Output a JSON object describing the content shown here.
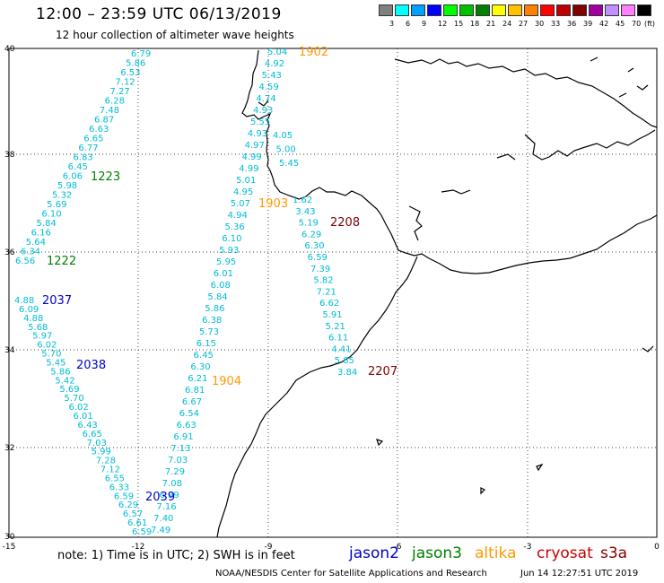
{
  "header": {
    "title": "12:00 – 23:59 UTC 06/13/2019",
    "subtitle": "12 hour collection of altimeter wave heights"
  },
  "legend": {
    "unit": "(ft)",
    "labels": [
      "3",
      "6",
      "9",
      "12",
      "15",
      "18",
      "21",
      "24",
      "27",
      "30",
      "33",
      "36",
      "39",
      "42",
      "45",
      "70"
    ],
    "colors": [
      "#808080",
      "#00ffff",
      "#00a0ff",
      "#0000ff",
      "#00ff00",
      "#00c000",
      "#008000",
      "#ffff00",
      "#ffc000",
      "#ff8000",
      "#ff0000",
      "#c00000",
      "#800000",
      "#a000a0",
      "#c090ff",
      "#ff80ff",
      "#000000"
    ]
  },
  "axes": {
    "lon_labels": [
      "-15",
      "-12",
      "-9",
      "-6",
      "-3",
      "0"
    ],
    "lat_labels": [
      "40",
      "38",
      "36",
      "34",
      "32",
      "30"
    ]
  },
  "track_labels": [
    {
      "text": "1902",
      "color": "#ff9900"
    },
    {
      "text": "1223",
      "color": "#008000"
    },
    {
      "text": "1222",
      "color": "#008000"
    },
    {
      "text": "2037",
      "color": "#0000cc"
    },
    {
      "text": "2038",
      "color": "#0000cc"
    },
    {
      "text": "1903",
      "color": "#ff9900"
    },
    {
      "text": "2208",
      "color": "#800000"
    },
    {
      "text": "1904",
      "color": "#ff9900"
    },
    {
      "text": "2207",
      "color": "#800000"
    },
    {
      "text": "2039",
      "color": "#0000cc"
    }
  ],
  "swh_values": {
    "track_west_1223": [
      "6.79",
      "5.86",
      "6.53",
      "7.12",
      "7.27",
      "6.28",
      "7.48",
      "6.87",
      "6.63",
      "6.65",
      "6.77",
      "6.83",
      "6.45",
      "6.06",
      "5.98",
      "5.32",
      "5.69",
      "6.10",
      "5.84",
      "6.16",
      "5.64",
      "6.34",
      "6.56"
    ],
    "track_2037": [
      "4.88",
      "6.09",
      "4.88",
      "5.68",
      "5.97",
      "6.02",
      "5.70",
      "5.45",
      "5.86",
      "5.42",
      "5.69",
      "5.70",
      "6.02",
      "6.01",
      "6.43",
      "6.65",
      "7.03",
      "5.99",
      "7.28",
      "7.12",
      "6.55",
      "6.33",
      "6.59",
      "6.29",
      "6.57",
      "6.61",
      "6.59"
    ],
    "track_1903": [
      "5.04",
      "4.92",
      "5.43",
      "4.59",
      "4.74",
      "4.93",
      "5.55",
      "4.93",
      "4.97",
      "4.99",
      "4.99",
      "5.01",
      "4.95",
      "5.07",
      "4.94",
      "5.36",
      "6.10",
      "5.93",
      "5.95",
      "6.01",
      "6.08",
      "5.84",
      "5.86",
      "6.38",
      "5.73",
      "6.15",
      "6.45",
      "6.30",
      "6.21",
      "6.81",
      "6.67",
      "6.54",
      "6.63",
      "6.91",
      "7.13",
      "7.03",
      "7.29",
      "7.08",
      "6.99",
      "7.16",
      "7.40",
      "7.49"
    ],
    "track_east_1903": [
      "4.05",
      "5.00",
      "5.45"
    ],
    "track_2208": [
      "1.62",
      "3.43",
      "5.19",
      "6.29",
      "6.30",
      "6.59",
      "7.39",
      "5.82",
      "7.21",
      "6.62",
      "5.91",
      "5.21",
      "6.11",
      "4.41",
      "5.85",
      "3.84"
    ]
  },
  "footer": {
    "note": "note:  1) Time is in UTC;  2) SWH is in feet",
    "satellites": [
      {
        "name": "jason2",
        "color": "#0000cc"
      },
      {
        "name": "jason3",
        "color": "#008000"
      },
      {
        "name": "altika",
        "color": "#ff9900"
      },
      {
        "name": "cryosat",
        "color": "#cc0000"
      },
      {
        "name": "s3a",
        "color": "#800000"
      }
    ],
    "credit": "NOAA/NESDIS Center for Satellite Applications and Research",
    "timestamp": "Jun 14 12:27:51 UTC 2019"
  }
}
